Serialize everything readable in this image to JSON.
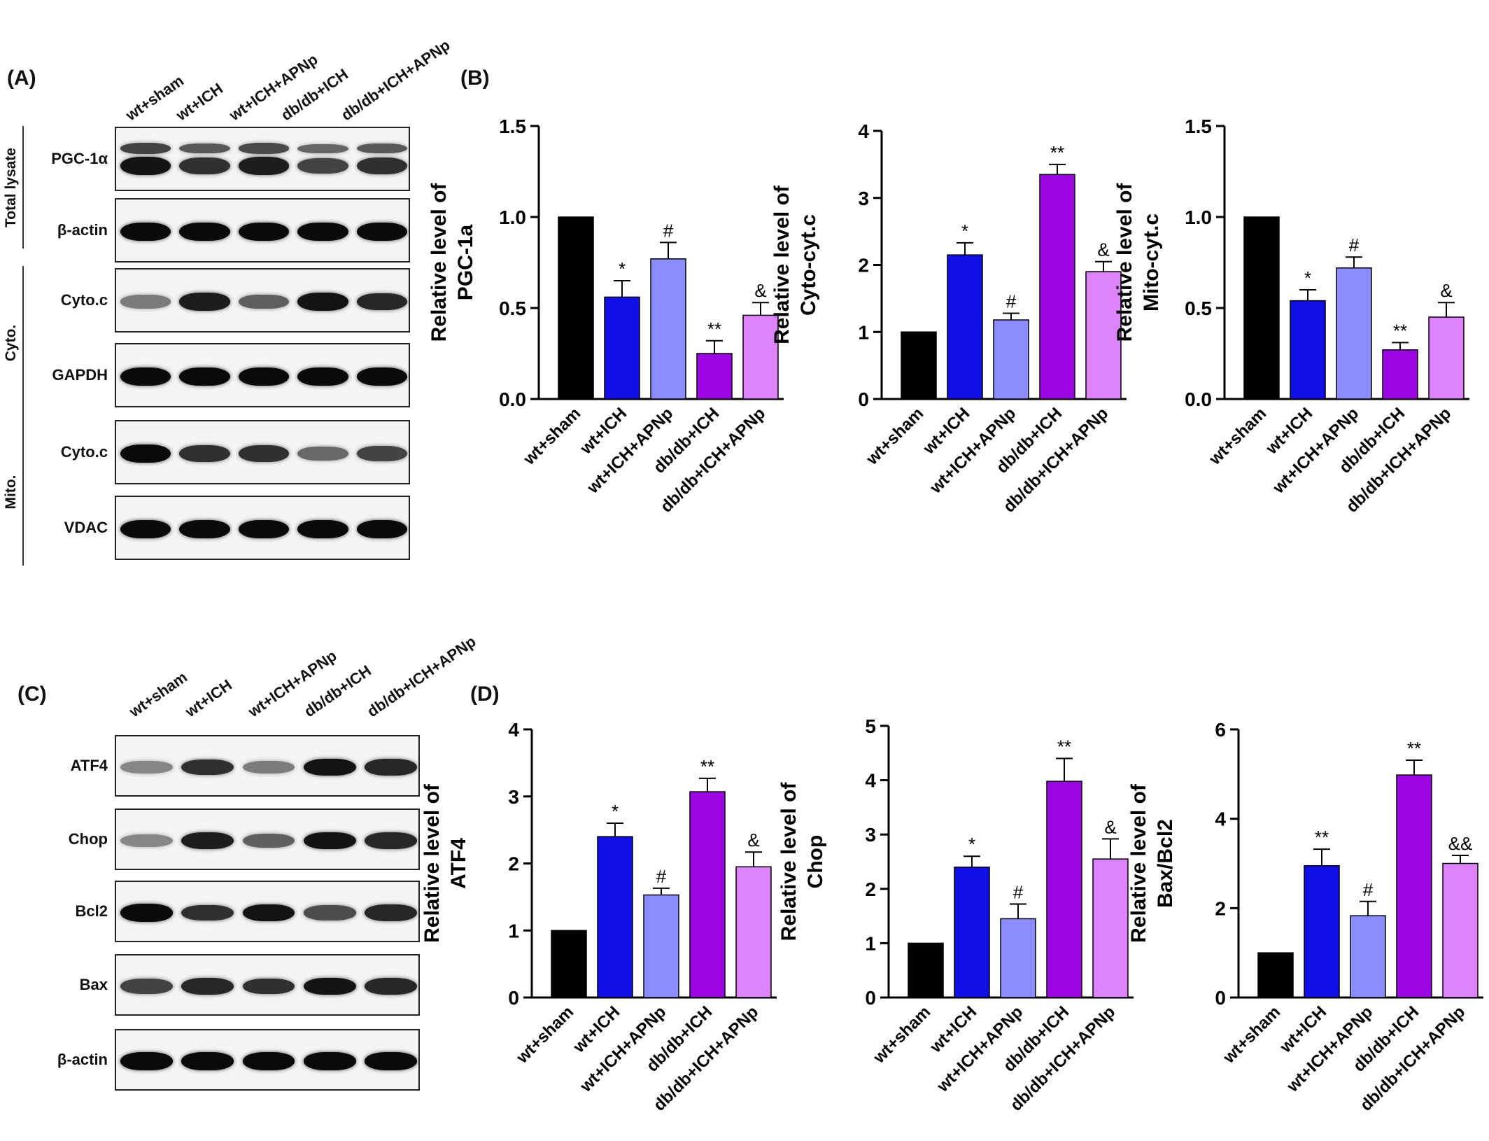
{
  "panels": {
    "A": "(A)",
    "B": "(B)",
    "C": "(C)",
    "D": "(D)"
  },
  "groups": [
    "wt+sham",
    "wt+ICH",
    "wt+ICH+APNp",
    "db/db+ICH",
    "db/db+ICH+APNp"
  ],
  "blot_A": {
    "fractions": [
      "Total lysate",
      "Cyto.",
      "Mito."
    ],
    "rows": [
      {
        "label": "PGC-1α",
        "intensity": [
          0.95,
          0.8,
          0.9,
          0.7,
          0.8
        ],
        "double": true
      },
      {
        "label": "β-actin",
        "intensity": [
          1,
          1,
          1,
          1,
          1
        ],
        "double": false
      },
      {
        "label": "Cyto.c",
        "intensity": [
          0.4,
          0.9,
          0.55,
          0.95,
          0.85
        ],
        "double": false
      },
      {
        "label": "GAPDH",
        "intensity": [
          1,
          1,
          1,
          1,
          1
        ],
        "double": false
      },
      {
        "label": "Cyto.c",
        "intensity": [
          1,
          0.8,
          0.8,
          0.5,
          0.7
        ],
        "double": false
      },
      {
        "label": "VDAC",
        "intensity": [
          1,
          1,
          1,
          1,
          1
        ],
        "double": false
      }
    ]
  },
  "blot_C": {
    "rows": [
      {
        "label": "ATF4",
        "intensity": [
          0.35,
          0.8,
          0.4,
          0.95,
          0.85
        ],
        "double": false
      },
      {
        "label": "Chop",
        "intensity": [
          0.35,
          0.9,
          0.55,
          0.95,
          0.85
        ],
        "double": false
      },
      {
        "label": "Bcl2",
        "intensity": [
          1,
          0.8,
          0.95,
          0.65,
          0.85
        ],
        "double": false
      },
      {
        "label": "Bax",
        "intensity": [
          0.7,
          0.85,
          0.8,
          0.95,
          0.85
        ],
        "double": false
      },
      {
        "label": "β-actin",
        "intensity": [
          1,
          1,
          1,
          1,
          1
        ],
        "double": false
      }
    ]
  },
  "chart_data": [
    {
      "type": "bar",
      "title": "",
      "ylabel_lines": [
        "Relative level of",
        "PGC-1a"
      ],
      "categories": [
        "wt+sham",
        "wt+ICH",
        "wt+ICH+APNp",
        "db/db+ICH",
        "db/db+ICH+APNp"
      ],
      "values": [
        1.0,
        0.56,
        0.77,
        0.25,
        0.46
      ],
      "errors": [
        0,
        0.09,
        0.09,
        0.07,
        0.07
      ],
      "annotations": [
        "",
        "*",
        "#",
        "**",
        "&"
      ],
      "ylim": [
        0,
        1.5
      ],
      "yticks": [
        "0.0",
        "0.5",
        "1.0",
        "1.5"
      ]
    },
    {
      "type": "bar",
      "title": "",
      "ylabel_lines": [
        "Relative level of",
        "Cyto-cyt.c"
      ],
      "categories": [
        "wt+sham",
        "wt+ICH",
        "wt+ICH+APNp",
        "db/db+ICH",
        "db/db+ICH+APNp"
      ],
      "values": [
        1.0,
        2.15,
        1.18,
        3.35,
        1.9
      ],
      "errors": [
        0,
        0.18,
        0.1,
        0.15,
        0.15
      ],
      "annotations": [
        "",
        "*",
        "#",
        "**",
        "&"
      ],
      "ylim": [
        0,
        4
      ],
      "yticks": [
        "0",
        "1",
        "2",
        "3",
        "4"
      ]
    },
    {
      "type": "bar",
      "title": "",
      "ylabel_lines": [
        "Relative level of",
        "Mito-cyt.c"
      ],
      "categories": [
        "wt+sham",
        "wt+ICH",
        "wt+ICH+APNp",
        "db/db+ICH",
        "db/db+ICH+APNp"
      ],
      "values": [
        1.0,
        0.54,
        0.72,
        0.27,
        0.45
      ],
      "errors": [
        0,
        0.06,
        0.06,
        0.04,
        0.08
      ],
      "annotations": [
        "",
        "*",
        "#",
        "**",
        "&"
      ],
      "ylim": [
        0,
        1.5
      ],
      "yticks": [
        "0.0",
        "0.5",
        "1.0",
        "1.5"
      ]
    },
    {
      "type": "bar",
      "title": "",
      "ylabel_lines": [
        "Relative level of",
        "ATF4"
      ],
      "categories": [
        "wt+sham",
        "wt+ICH",
        "wt+ICH+APNp",
        "db/db+ICH",
        "db/db+ICH+APNp"
      ],
      "values": [
        1.0,
        2.4,
        1.53,
        3.07,
        1.95
      ],
      "errors": [
        0,
        0.2,
        0.1,
        0.2,
        0.22
      ],
      "annotations": [
        "",
        "*",
        "#",
        "**",
        "&"
      ],
      "ylim": [
        0,
        4
      ],
      "yticks": [
        "0",
        "1",
        "2",
        "3",
        "4"
      ]
    },
    {
      "type": "bar",
      "title": "",
      "ylabel_lines": [
        "Relative level of",
        "Chop"
      ],
      "categories": [
        "wt+sham",
        "wt+ICH",
        "wt+ICH+APNp",
        "db/db+ICH",
        "db/db+ICH+APNp"
      ],
      "values": [
        1.0,
        2.4,
        1.45,
        3.98,
        2.55
      ],
      "errors": [
        0,
        0.2,
        0.27,
        0.42,
        0.37
      ],
      "annotations": [
        "",
        "*",
        "#",
        "**",
        "&"
      ],
      "ylim": [
        0,
        5
      ],
      "yticks": [
        "0",
        "1",
        "2",
        "3",
        "4",
        "5"
      ]
    },
    {
      "type": "bar",
      "title": "",
      "ylabel_lines": [
        "Relative level of",
        "Bax/Bcl2"
      ],
      "categories": [
        "wt+sham",
        "wt+ICH",
        "wt+ICH+APNp",
        "db/db+ICH",
        "db/db+ICH+APNp"
      ],
      "values": [
        1.0,
        2.95,
        1.83,
        4.98,
        3.0
      ],
      "errors": [
        0,
        0.37,
        0.32,
        0.33,
        0.18
      ],
      "annotations": [
        "",
        "**",
        "#",
        "**",
        "&&"
      ],
      "ylim": [
        0,
        6
      ],
      "yticks": [
        "0",
        "2",
        "4",
        "6"
      ]
    }
  ],
  "colors": [
    "#000000",
    "#1010e6",
    "#8a8cff",
    "#9b05e3",
    "#dd84fb"
  ]
}
